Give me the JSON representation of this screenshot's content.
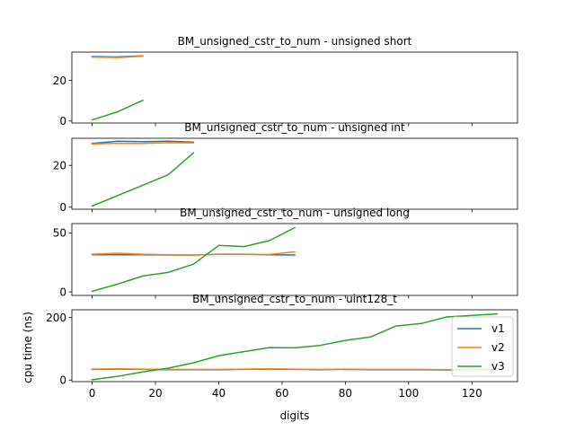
{
  "xlabel": "digits",
  "ylabel": "cpu time (ns)",
  "colors": {
    "v1": "#1f77b4",
    "v2": "#ff7f0e",
    "v3": "#2ca02c"
  },
  "legend": {
    "entries": [
      "v1",
      "v2",
      "v3"
    ],
    "placement": "lower-right of bottom panel"
  },
  "chart_data": [
    {
      "type": "line",
      "title": "BM_unsigned_cstr_to_num - unsigned short",
      "xlim": [
        -6.4,
        134.4
      ],
      "ylim": [
        -1,
        34
      ],
      "yticks": [
        0,
        20
      ],
      "series": [
        {
          "name": "v1",
          "x": [
            0,
            8,
            16
          ],
          "y": [
            31.8,
            31.6,
            32.2
          ]
        },
        {
          "name": "v2",
          "x": [
            0,
            8,
            16
          ],
          "y": [
            31.5,
            31.3,
            32.0
          ]
        },
        {
          "name": "v3",
          "x": [
            0,
            8,
            16
          ],
          "y": [
            0.5,
            4.5,
            10.2
          ]
        }
      ]
    },
    {
      "type": "line",
      "title": "BM_unsigned_cstr_to_num - unsigned int",
      "xlim": [
        -6.4,
        134.4
      ],
      "ylim": [
        -1,
        33
      ],
      "yticks": [
        0,
        20
      ],
      "series": [
        {
          "name": "v1",
          "x": [
            0,
            8,
            16,
            24,
            32
          ],
          "y": [
            30.5,
            31.6,
            31.4,
            31.6,
            31.2
          ]
        },
        {
          "name": "v2",
          "x": [
            0,
            8,
            16,
            24,
            32
          ],
          "y": [
            30.3,
            30.6,
            30.5,
            30.9,
            30.8
          ]
        },
        {
          "name": "v3",
          "x": [
            0,
            8,
            16,
            24,
            32
          ],
          "y": [
            0.5,
            5.5,
            10.5,
            15.5,
            26.0
          ]
        }
      ]
    },
    {
      "type": "line",
      "title": "BM_unsigned_cstr_to_num - unsigned long",
      "xlim": [
        -6.4,
        134.4
      ],
      "ylim": [
        -3,
        58
      ],
      "yticks": [
        0,
        50
      ],
      "series": [
        {
          "name": "v1",
          "x": [
            0,
            8,
            16,
            24,
            32,
            40,
            48,
            56,
            64
          ],
          "y": [
            31.5,
            31.5,
            31.5,
            31.3,
            31.2,
            32.0,
            32.0,
            31.5,
            31.3
          ]
        },
        {
          "name": "v2",
          "x": [
            0,
            8,
            16,
            24,
            32,
            40,
            48,
            56,
            64
          ],
          "y": [
            32.0,
            32.8,
            32.0,
            31.5,
            31.3,
            31.8,
            31.8,
            31.8,
            34.0
          ]
        },
        {
          "name": "v3",
          "x": [
            0,
            8,
            16,
            24,
            32,
            40,
            48,
            56,
            64
          ],
          "y": [
            0.5,
            6.5,
            13.5,
            16.5,
            23.5,
            39.5,
            38.5,
            43.5,
            54.5
          ]
        }
      ]
    },
    {
      "type": "line",
      "title": "BM_unsigned_cstr_to_num - uint128_t",
      "xlim": [
        -6.4,
        134.4
      ],
      "ylim": [
        -5,
        225
      ],
      "yticks": [
        0,
        200
      ],
      "xticks": [
        0,
        20,
        40,
        60,
        80,
        100,
        120
      ],
      "series": [
        {
          "name": "v1",
          "x": [
            0,
            8,
            16,
            24,
            32,
            40,
            48,
            56,
            64,
            72,
            80,
            88,
            96,
            104,
            112,
            120,
            128
          ],
          "y": [
            34,
            35,
            34,
            33,
            33,
            33,
            34,
            35,
            34,
            33,
            34,
            33,
            33,
            33,
            32,
            33,
            33
          ]
        },
        {
          "name": "v2",
          "x": [
            0,
            8,
            16,
            24,
            32,
            40,
            48,
            56,
            64,
            72,
            80,
            88,
            96,
            104,
            112,
            120,
            128
          ],
          "y": [
            35,
            36,
            35,
            34,
            34,
            34,
            35,
            36,
            35,
            34,
            35,
            34,
            34,
            34,
            33,
            34,
            34
          ]
        },
        {
          "name": "v3",
          "x": [
            0,
            8,
            16,
            24,
            32,
            40,
            48,
            56,
            64,
            72,
            80,
            88,
            96,
            104,
            112,
            120,
            128
          ],
          "y": [
            1,
            12,
            26,
            38,
            55,
            78,
            91,
            104,
            103,
            111,
            127,
            138,
            173,
            181,
            202,
            207,
            212
          ]
        }
      ]
    }
  ]
}
